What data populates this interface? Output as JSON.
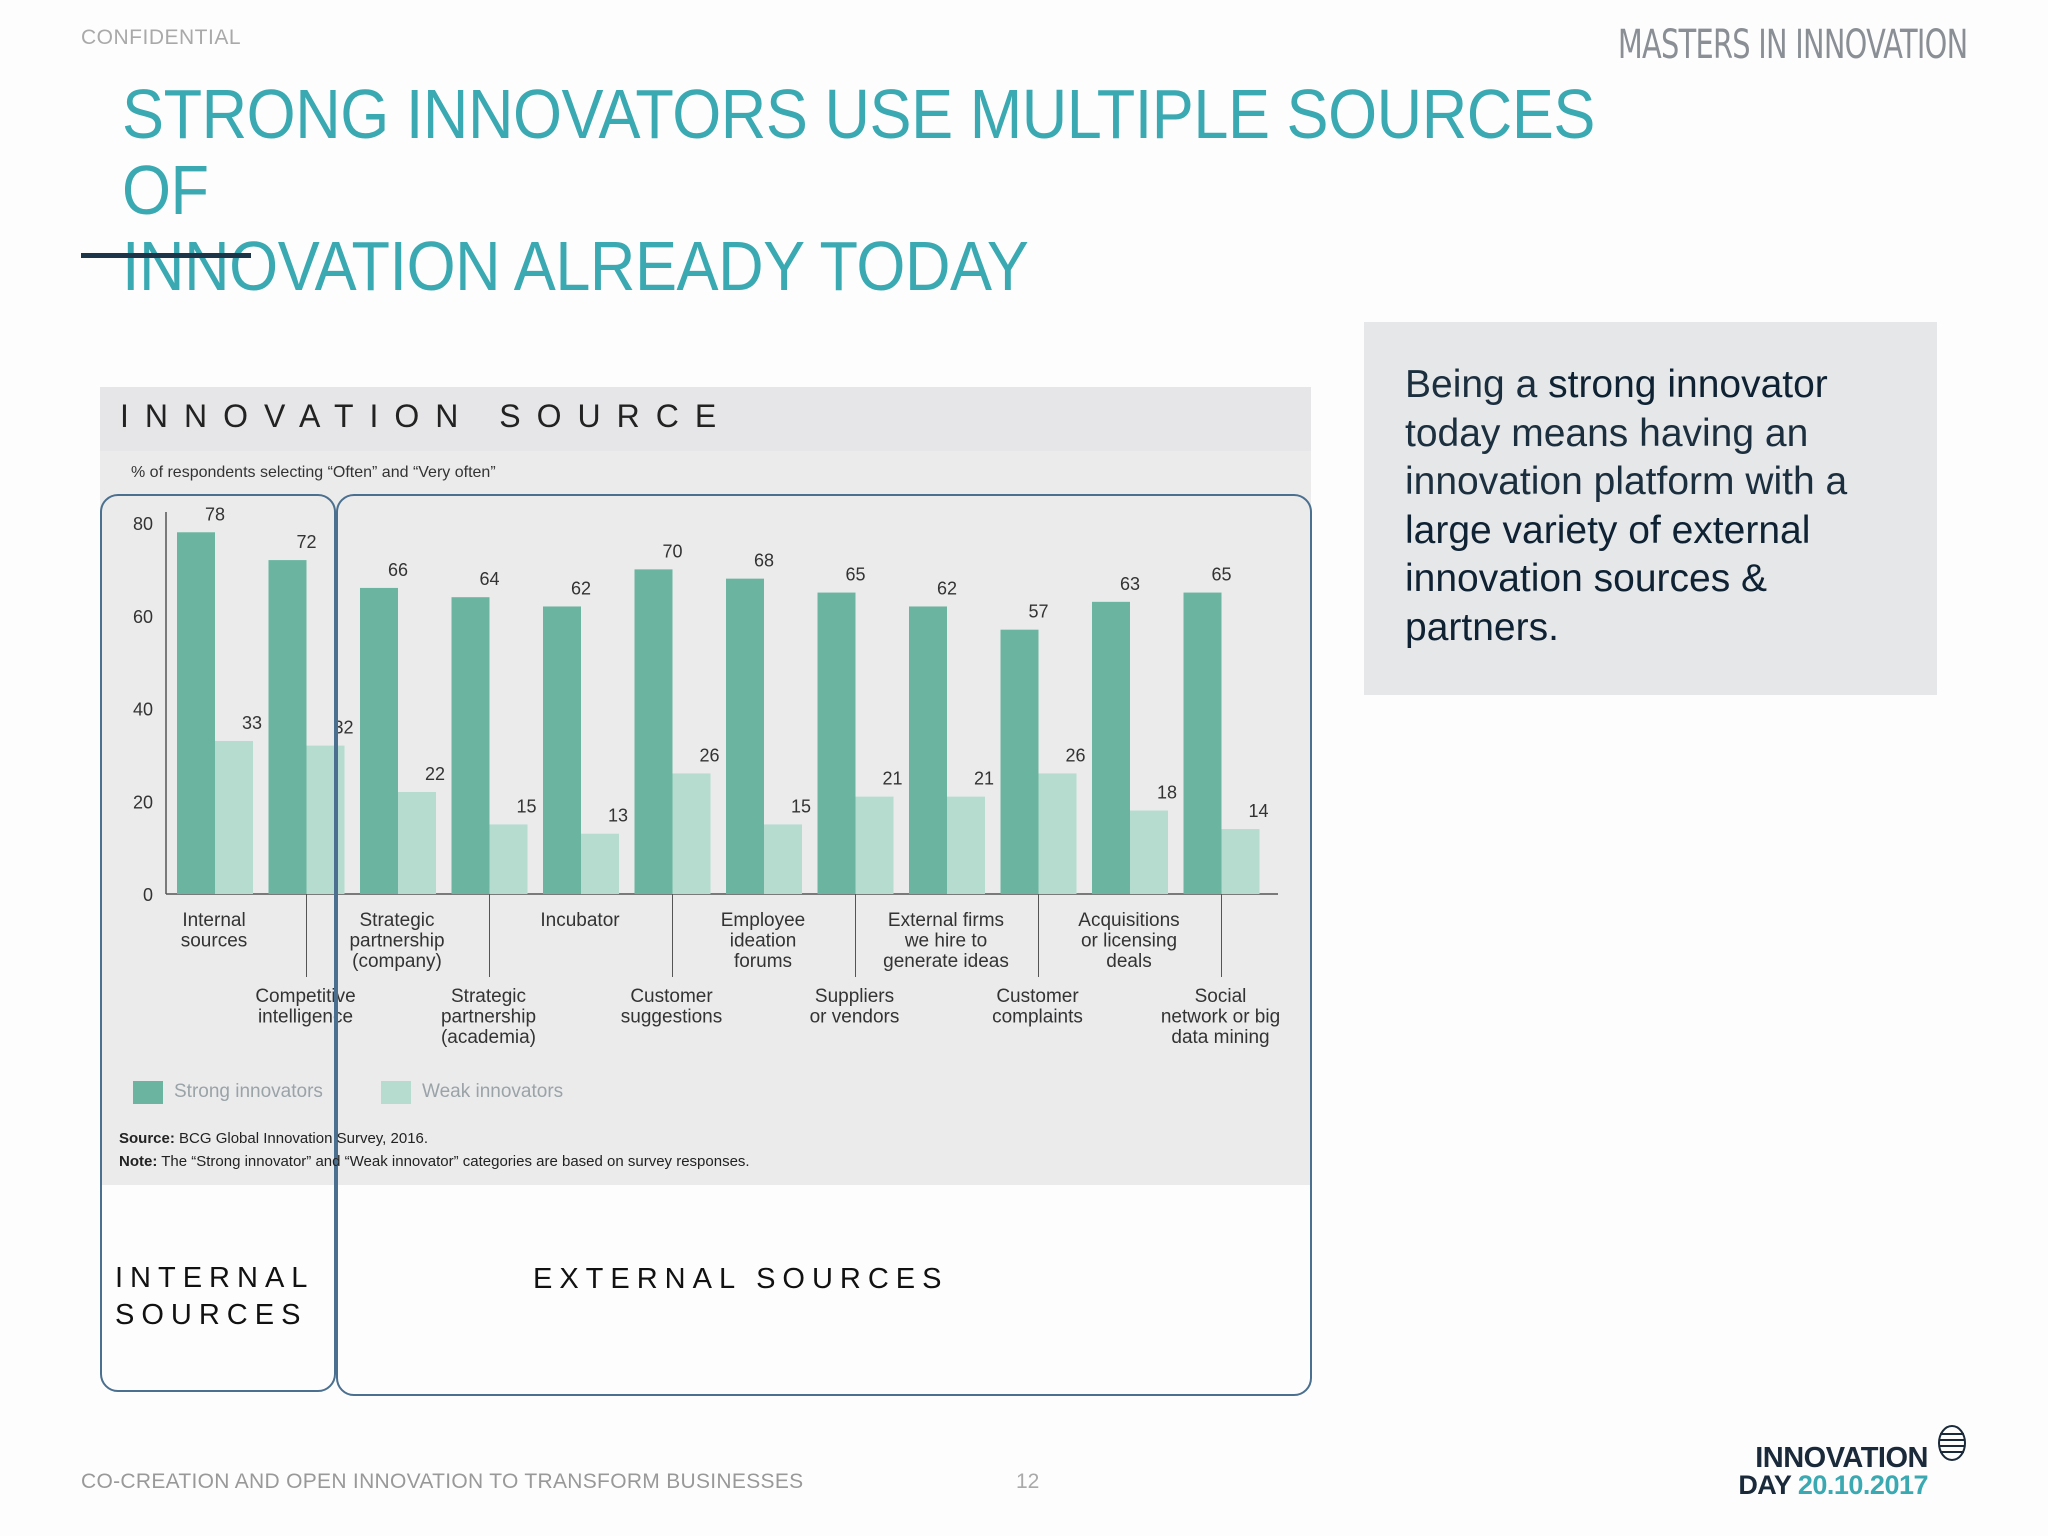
{
  "header": {
    "confidential": "CONFIDENTIAL",
    "brand": "MASTERS IN INNOVATION",
    "title_line1": "STRONG INNOVATORS USE MULTIPLE SOURCES OF",
    "title_line2": "INNOVATION ALREADY TODAY"
  },
  "chart_panel": {
    "heading": "INNOVATION SOURCE",
    "internal_label_line1": "INTERNAL",
    "internal_label_line2": "SOURCES",
    "external_label": "EXTERNAL SOURCES",
    "source_label": "Source:",
    "source_text": " BCG Global Innovation Survey, 2016.",
    "note_label": "Note:",
    "note_text": " The “Strong innovator” and “Weak innovator” categories are based on survey responses."
  },
  "chart_data": {
    "type": "bar",
    "subtitle": "% of respondents selecting “Often” and “Very often”",
    "ylim": [
      0,
      80
    ],
    "yticks": [
      0,
      20,
      40,
      60,
      80
    ],
    "categories": [
      [
        "Internal",
        "sources"
      ],
      [
        "Competitive",
        "intelligence"
      ],
      [
        "Strategic",
        "partnership",
        "(company)"
      ],
      [
        "Strategic",
        "partnership",
        "(academia)"
      ],
      [
        "Incubator"
      ],
      [
        "Customer",
        "suggestions"
      ],
      [
        "Employee",
        "ideation",
        "forums"
      ],
      [
        "Suppliers",
        "or vendors"
      ],
      [
        "External firms",
        "we hire to",
        "generate ideas"
      ],
      [
        "Customer",
        "complaints"
      ],
      [
        "Acquisitions",
        "or licensing",
        "deals"
      ],
      [
        "Social",
        "network or big",
        "data mining"
      ]
    ],
    "series": [
      {
        "name": "Strong innovators",
        "color": "#6bb5a0",
        "values": [
          78,
          72,
          66,
          64,
          62,
          70,
          68,
          65,
          62,
          57,
          63,
          65
        ]
      },
      {
        "name": "Weak innovators",
        "color": "#b5dccf",
        "values": [
          33,
          32,
          22,
          15,
          13,
          26,
          15,
          21,
          21,
          26,
          18,
          14
        ]
      }
    ]
  },
  "callout": {
    "t1": "Being a ",
    "t2": "strong innovator",
    "t3": " today means having an innovation platform with a ",
    "t4": "large variety of external innovation sources & partners."
  },
  "footer": {
    "left": "CO-CREATION AND OPEN INNOVATION TO TRANSFORM BUSINESSES",
    "page": "12",
    "logo_line1": "INNOVATION",
    "logo_day": "DAY ",
    "logo_date": "20.10.2017"
  },
  "colors": {
    "accent": "#3aa9b2",
    "navy": "#1c3548",
    "strong": "#6bb5a0",
    "weak": "#b5dccf"
  }
}
